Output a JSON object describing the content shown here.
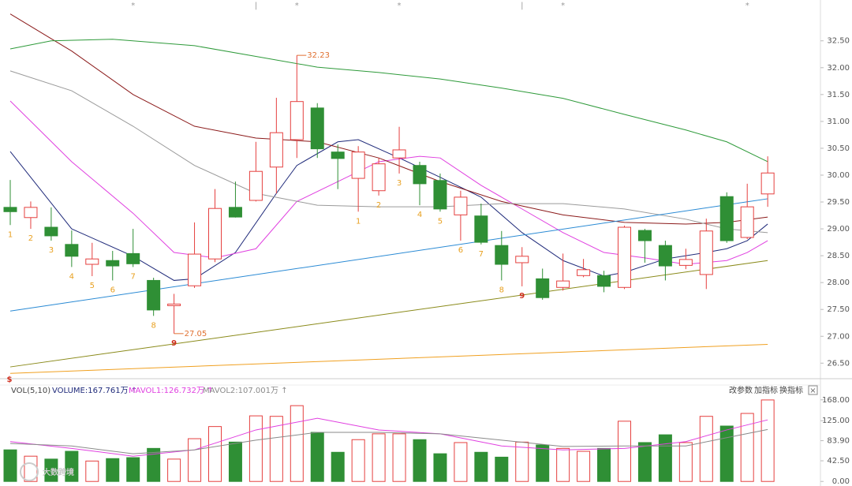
{
  "chart_data": [
    {
      "type": "candlestick",
      "open": [
        29.4,
        29.21,
        29.03,
        28.71,
        28.34,
        28.41,
        28.54,
        28.04,
        27.57,
        27.94,
        28.44,
        29.4,
        29.53,
        30.15,
        30.66,
        31.25,
        30.43,
        29.94,
        29.71,
        30.32,
        30.18,
        29.9,
        29.26,
        29.24,
        28.69,
        28.37,
        28.07,
        27.91,
        28.13,
        28.13,
        27.91,
        28.97,
        28.69,
        28.32,
        28.15,
        29.6,
        28.84,
        29.65
      ],
      "high": [
        29.91,
        29.51,
        29.4,
        28.97,
        28.74,
        28.59,
        29.0,
        28.09,
        27.79,
        29.12,
        29.74,
        29.88,
        30.62,
        31.44,
        32.23,
        31.34,
        30.57,
        30.54,
        30.32,
        30.9,
        30.25,
        30.03,
        29.71,
        29.47,
        28.96,
        28.66,
        28.26,
        28.54,
        28.44,
        28.22,
        29.06,
        29.0,
        28.78,
        28.63,
        29.19,
        29.68,
        29.84,
        30.35
      ],
      "low": [
        29.07,
        29.0,
        28.78,
        28.29,
        28.12,
        28.04,
        28.29,
        27.38,
        27.05,
        27.9,
        28.38,
        29.21,
        29.51,
        29.66,
        30.32,
        30.32,
        29.74,
        29.32,
        29.62,
        30.03,
        29.44,
        29.32,
        28.78,
        28.71,
        28.04,
        27.93,
        27.68,
        27.85,
        28.1,
        27.82,
        27.88,
        28.37,
        28.04,
        28.25,
        27.88,
        28.74,
        28.81,
        29.41
      ],
      "close": [
        29.32,
        29.4,
        28.87,
        28.49,
        28.44,
        28.31,
        28.35,
        27.49,
        27.6,
        28.53,
        29.38,
        29.22,
        30.07,
        30.79,
        31.37,
        30.49,
        30.31,
        30.43,
        30.21,
        30.47,
        29.84,
        29.37,
        29.59,
        28.75,
        28.34,
        28.49,
        27.72,
        28.03,
        28.24,
        27.93,
        29.03,
        28.78,
        28.31,
        28.43,
        28.96,
        28.78,
        29.41,
        30.04
      ],
      "up_color": "#e5403f",
      "down_color": "#2f8f35",
      "td_labels": [
        "1",
        "2",
        "3",
        "4",
        "5",
        "6",
        "7",
        "8",
        "9",
        null,
        null,
        null,
        null,
        null,
        null,
        null,
        null,
        "1",
        "2",
        "3",
        "4",
        "5",
        "6",
        "7",
        "8",
        "9",
        null,
        null,
        null,
        null,
        null,
        null,
        null,
        null,
        null,
        null,
        null,
        null
      ],
      "top_marks": [
        null,
        null,
        null,
        null,
        null,
        null,
        "*",
        null,
        null,
        null,
        null,
        null,
        "|",
        null,
        "*",
        null,
        null,
        null,
        null,
        "*",
        null,
        null,
        null,
        null,
        null,
        "|",
        null,
        "*",
        null,
        null,
        null,
        null,
        null,
        null,
        null,
        null,
        "*",
        null
      ],
      "bottom_mark": "$",
      "overlays": [
        {
          "color": "#1f2a7a",
          "x": [
            0,
            3,
            6,
            8,
            9,
            11,
            13,
            14,
            16,
            17,
            19,
            21,
            23,
            25,
            27,
            29,
            30,
            32,
            34,
            35,
            36,
            37
          ],
          "values": [
            30.44,
            29.0,
            28.49,
            28.04,
            28.07,
            28.56,
            29.66,
            30.18,
            30.62,
            30.66,
            30.32,
            29.96,
            29.59,
            28.93,
            28.41,
            28.12,
            28.19,
            28.44,
            28.56,
            28.63,
            28.78,
            29.09
          ]
        },
        {
          "color": "#e040e0",
          "x": [
            0,
            3,
            6,
            8,
            10,
            12,
            14,
            16,
            18,
            20,
            21,
            23,
            25,
            27,
            29,
            31,
            33,
            35,
            36,
            37
          ],
          "values": [
            31.38,
            30.25,
            29.29,
            28.56,
            28.46,
            28.63,
            29.51,
            29.88,
            30.25,
            30.35,
            30.32,
            29.81,
            29.37,
            28.93,
            28.56,
            28.46,
            28.34,
            28.41,
            28.56,
            28.78
          ]
        },
        {
          "color": "#8b1a1a",
          "x": [
            0,
            3,
            6,
            9,
            12,
            15,
            18,
            21,
            24,
            27,
            30,
            33,
            35,
            37
          ],
          "values": [
            33.0,
            32.31,
            31.5,
            30.91,
            30.69,
            30.62,
            30.32,
            29.88,
            29.51,
            29.26,
            29.12,
            29.09,
            29.12,
            29.22
          ]
        },
        {
          "color": "#9a9a9a",
          "x": [
            0,
            3,
            6,
            9,
            12,
            15,
            18,
            21,
            24,
            27,
            30,
            33,
            35,
            37
          ],
          "values": [
            31.94,
            31.57,
            30.91,
            30.18,
            29.66,
            29.44,
            29.41,
            29.41,
            29.47,
            29.47,
            29.37,
            29.18,
            29.0,
            28.93
          ]
        },
        {
          "color": "#2e9a3a",
          "x": [
            0,
            2,
            5,
            9,
            12,
            15,
            18,
            21,
            24,
            27,
            30,
            33,
            35,
            37
          ],
          "values": [
            32.35,
            32.5,
            32.53,
            32.41,
            32.21,
            32.01,
            31.91,
            31.79,
            31.62,
            31.43,
            31.13,
            30.84,
            30.62,
            30.25
          ]
        },
        {
          "color": "#2a8ad4",
          "x": [
            0,
            37
          ],
          "values": [
            27.47,
            29.56
          ]
        },
        {
          "color": "#8a8a1a",
          "x": [
            0,
            37
          ],
          "values": [
            26.43,
            28.41
          ]
        },
        {
          "color": "#f0a020",
          "x": [
            0,
            37
          ],
          "values": [
            26.31,
            26.85
          ]
        }
      ],
      "ylim": [
        26.24,
        33.26
      ],
      "yticks": [
        {
          "value": 26.5,
          "label": "26.50"
        },
        {
          "value": 27.0,
          "label": "27.00"
        },
        {
          "value": 27.5,
          "label": "27.50"
        },
        {
          "value": 28.0,
          "label": "28.00"
        },
        {
          "value": 28.5,
          "label": "28.50"
        },
        {
          "value": 29.0,
          "label": "29.00"
        },
        {
          "value": 29.5,
          "label": "29.50"
        },
        {
          "value": 30.0,
          "label": "30.00"
        },
        {
          "value": 30.5,
          "label": "30.50"
        },
        {
          "value": 31.0,
          "label": "31.00"
        },
        {
          "value": 31.5,
          "label": "31.50"
        },
        {
          "value": 32.0,
          "label": "32.00"
        },
        {
          "value": 32.5,
          "label": "32.50"
        }
      ]
    },
    {
      "type": "bar",
      "indicator": "VOL(5,10)",
      "name": "VOLUME:167.761万 ↑",
      "name_color": "#1f2a7a",
      "values": [
        65,
        52,
        46,
        62,
        42,
        47,
        49,
        68,
        46,
        88,
        113,
        81,
        135,
        134,
        156,
        101,
        60,
        86,
        98,
        98,
        86,
        57,
        80,
        60,
        50,
        81,
        75,
        68,
        62,
        68,
        124,
        80,
        96,
        80,
        134,
        114,
        140,
        167.761
      ],
      "series": [
        {
          "name": "MAVOL1:126.732万 ↑",
          "color": "#e040e0",
          "x": [
            0,
            3,
            6,
            9,
            12,
            15,
            18,
            21,
            24,
            27,
            30,
            33,
            35,
            37
          ],
          "values": [
            82,
            68,
            52,
            65,
            106,
            130,
            106,
            98,
            73,
            65,
            68,
            82,
            106,
            126.732
          ]
        },
        {
          "name": "MAVOL2:107.001万 ↑",
          "color": "#8a8a8a",
          "x": [
            0,
            3,
            6,
            9,
            12,
            15,
            18,
            21,
            24,
            27,
            30,
            33,
            35,
            37
          ],
          "values": [
            78,
            73,
            57,
            65,
            85,
            101,
            101,
            98,
            85,
            72,
            73,
            73,
            90,
            107.001
          ]
        }
      ],
      "buttons": [
        "改参数",
        "加指标",
        "换指标"
      ],
      "close_button": "×",
      "watermark": "大数跨境",
      "ylim": [
        -9.4,
        179
      ],
      "yticks": [
        {
          "value": 0,
          "label": "0.00"
        },
        {
          "value": 42.5,
          "label": "42.50"
        },
        {
          "value": 83.9,
          "label": "83.90"
        },
        {
          "value": 125,
          "label": "125.00"
        },
        {
          "value": 168,
          "label": "168.00"
        }
      ]
    }
  ]
}
